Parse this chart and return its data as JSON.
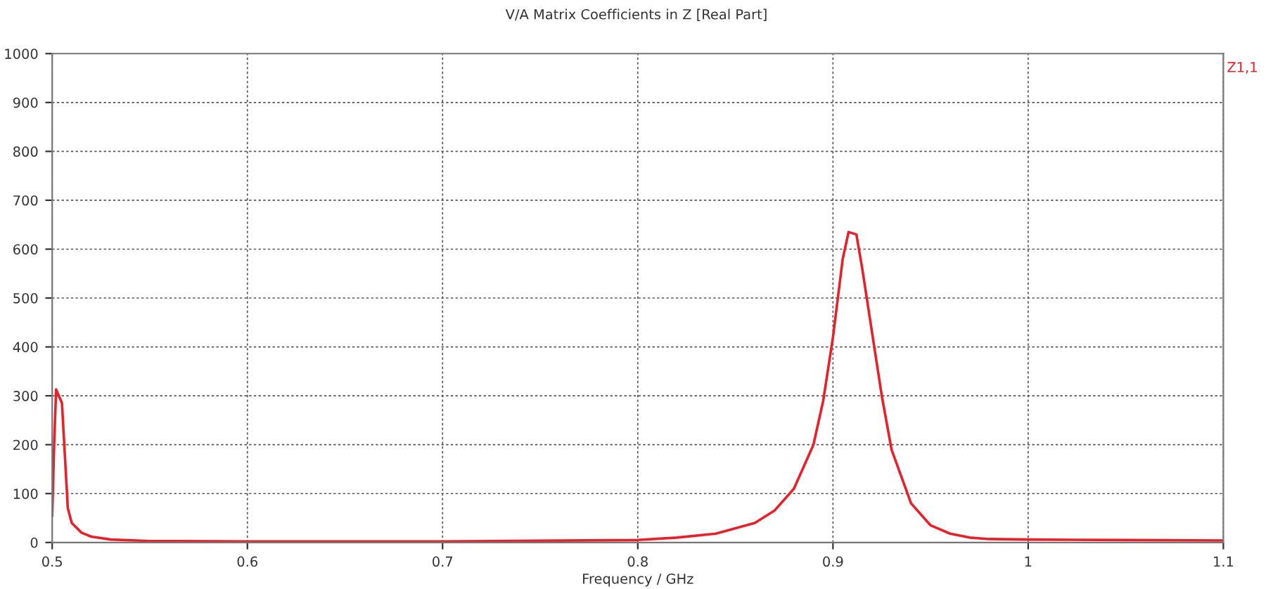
{
  "chart_data": {
    "type": "line",
    "title": "V/A Matrix Coefficients in Z [Real Part]",
    "xlabel": "Frequency / GHz",
    "xlim": [
      0.5,
      1.1
    ],
    "xticks": [
      0.5,
      0.6,
      0.7,
      0.8,
      0.9,
      1,
      1.1
    ],
    "ylim": [
      0,
      1000
    ],
    "yticks": [
      0,
      100,
      200,
      300,
      400,
      500,
      600,
      700,
      800,
      900,
      1000
    ],
    "grid": true,
    "legend": "top right",
    "series": [
      {
        "name": "Z1,1",
        "color": "#e8202a",
        "x": [
          0.5,
          0.501,
          0.502,
          0.505,
          0.508,
          0.51,
          0.515,
          0.52,
          0.53,
          0.55,
          0.6,
          0.7,
          0.8,
          0.82,
          0.84,
          0.86,
          0.87,
          0.88,
          0.89,
          0.895,
          0.9,
          0.905,
          0.908,
          0.912,
          0.915,
          0.92,
          0.925,
          0.93,
          0.94,
          0.95,
          0.96,
          0.97,
          0.98,
          1.0,
          1.05,
          1.1
        ],
        "values": [
          55,
          200,
          313,
          285,
          70,
          40,
          20,
          12,
          6,
          3,
          2,
          2,
          5,
          10,
          18,
          40,
          65,
          110,
          200,
          290,
          420,
          580,
          635,
          630,
          560,
          430,
          300,
          190,
          80,
          35,
          18,
          10,
          7,
          6,
          5,
          4
        ]
      }
    ]
  }
}
